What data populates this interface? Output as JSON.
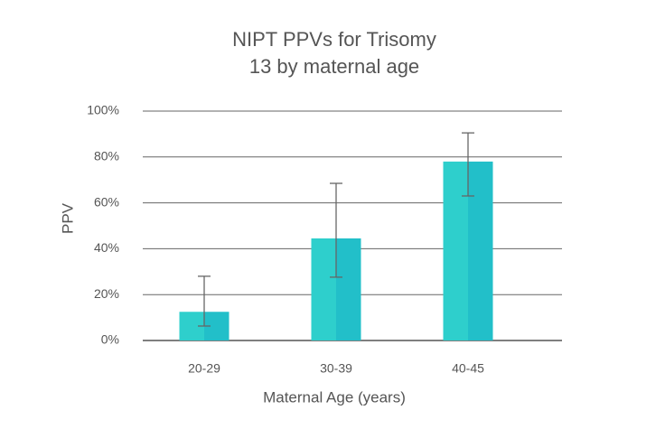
{
  "chart_data": {
    "type": "bar",
    "title_lines": [
      "NIPT PPVs for Trisomy",
      "13 by maternal age"
    ],
    "x_label": "Maternal Age (years)",
    "y_label": "PPV",
    "categories": [
      "20-29",
      "30-39",
      "40-45"
    ],
    "values": [
      12.5,
      44.5,
      78
    ],
    "ci_low": [
      6.3,
      27.6,
      63
    ],
    "ci_high": [
      28,
      68.5,
      90.5
    ],
    "color": "#26c9c9",
    "error_color": "#666666",
    "ylim": [
      0,
      100
    ],
    "yticks": [
      {
        "value": 0,
        "label": "0%"
      },
      {
        "value": 20,
        "label": "20%"
      },
      {
        "value": 40,
        "label": "40%"
      },
      {
        "value": 60,
        "label": "60%"
      },
      {
        "value": 80,
        "label": "80%"
      },
      {
        "value": 100,
        "label": "100%"
      }
    ],
    "grid": true
  }
}
